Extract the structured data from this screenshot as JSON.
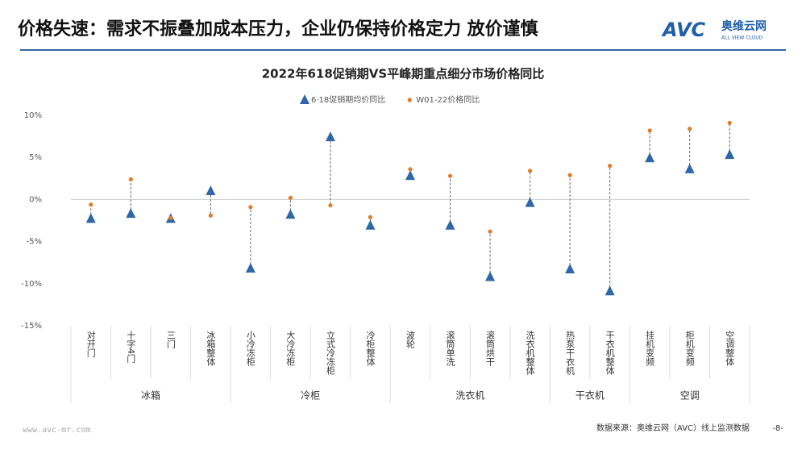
{
  "header": {
    "title": "价格失速：需求不振叠加成本压力，企业仍保持价格定力 放价谨慎",
    "logo": "AVC",
    "logo_cn": "奥维云网",
    "logo_en": "ALL VIEW CLOUD"
  },
  "footer": {
    "url": "www.avc-mr.com",
    "source": "数据来源：奥维云网（AVC）线上监测数据",
    "page": "-8-"
  },
  "chart_data": {
    "type": "dot-range",
    "title": "2022年618促销期VS平峰期重点细分市场价格同比",
    "groups": [
      {
        "name": "冰箱",
        "categories": [
          "对开门",
          "十字4门",
          "三门",
          "冰箱整体"
        ]
      },
      {
        "name": "冷柜",
        "categories": [
          "小冷冻柜",
          "大冷冻柜",
          "立式冷冻柜",
          "冷柜整体"
        ]
      },
      {
        "name": "洗衣机",
        "categories": [
          "波轮",
          "滚筒单洗",
          "滚筒烘干",
          "洗衣机整体"
        ]
      },
      {
        "name": "干衣机",
        "categories": [
          "热泵干衣机",
          "干衣机整体"
        ]
      },
      {
        "name": "空调",
        "categories": [
          "挂机变频",
          "柜机变频",
          "空调整体"
        ]
      }
    ],
    "series": [
      {
        "name": "6·18促销期均价同比",
        "color": "#2e66a8",
        "marker": "triangle",
        "values": [
          -2.3,
          -1.7,
          -2.3,
          1.0,
          -8.2,
          -1.8,
          7.4,
          -3.1,
          2.8,
          -3.1,
          -9.2,
          -0.4,
          -8.3,
          -10.9,
          4.9,
          3.6,
          5.3
        ]
      },
      {
        "name": "W01-22价格同比",
        "color": "#e07b2a",
        "marker": "dot",
        "values": [
          -0.6,
          2.4,
          -2.2,
          -1.9,
          -0.9,
          0.2,
          -0.7,
          -2.1,
          3.6,
          2.8,
          -3.8,
          3.4,
          2.9,
          4.0,
          8.2,
          8.4,
          9.1
        ]
      }
    ],
    "ylim": [
      -15,
      10
    ],
    "yticks": [
      {
        "value": 10,
        "label": "10%"
      },
      {
        "value": 5,
        "label": "5%"
      },
      {
        "value": 0,
        "label": "0%"
      },
      {
        "value": -5,
        "label": "-5%"
      },
      {
        "value": -10,
        "label": "-10%"
      },
      {
        "value": -15,
        "label": "-15%"
      }
    ],
    "zero_line": true,
    "connectors": true,
    "legend": "top"
  }
}
